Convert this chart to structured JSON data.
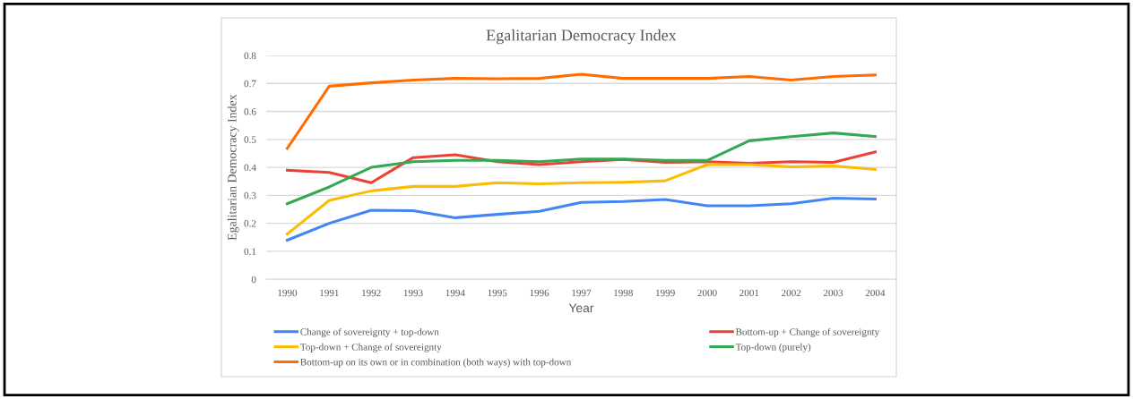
{
  "chart_data": {
    "type": "line",
    "title": "Egalitarian Democracy Index",
    "xlabel": "Year",
    "ylabel": "Egalitarian Democracy Index",
    "categories": [
      "1990",
      "1991",
      "1992",
      "1993",
      "1994",
      "1995",
      "1996",
      "1997",
      "1998",
      "1999",
      "2000",
      "2001",
      "2002",
      "2003",
      "2004"
    ],
    "ylim": [
      0,
      0.8
    ],
    "yticks": [
      0,
      0.1,
      0.2,
      0.3,
      0.4,
      0.5,
      0.6,
      0.7,
      0.8
    ],
    "grid": "y",
    "legend": "bottom",
    "marker": "none",
    "line_style": "solid",
    "series": [
      {
        "name": "Change of sovereignty + top-down",
        "color": "#4285f4",
        "values": [
          0.14,
          0.2,
          0.247,
          0.245,
          0.22,
          0.232,
          0.243,
          0.275,
          0.278,
          0.285,
          0.263,
          0.263,
          0.27,
          0.29,
          0.287
        ]
      },
      {
        "name": "Bottom-up + Change of sovereignty",
        "color": "#ea4335",
        "values": [
          0.39,
          0.382,
          0.345,
          0.435,
          0.445,
          0.42,
          0.41,
          0.42,
          0.428,
          0.418,
          0.42,
          0.415,
          0.42,
          0.418,
          0.455
        ]
      },
      {
        "name": "Top-down + Change of sovereignty",
        "color": "#fbbc04",
        "values": [
          0.162,
          0.282,
          0.316,
          0.332,
          0.332,
          0.345,
          0.341,
          0.345,
          0.347,
          0.352,
          0.41,
          0.41,
          0.402,
          0.405,
          0.393
        ]
      },
      {
        "name": "Top-down (purely)",
        "color": "#34a853",
        "values": [
          0.27,
          0.33,
          0.4,
          0.42,
          0.425,
          0.425,
          0.42,
          0.43,
          0.43,
          0.425,
          0.425,
          0.495,
          0.51,
          0.523,
          0.51
        ]
      },
      {
        "name": "Bottom-up on its own or in combination (both ways) with top-down",
        "color": "#ff6d01",
        "values": [
          0.468,
          0.69,
          0.702,
          0.712,
          0.718,
          0.717,
          0.718,
          0.733,
          0.718,
          0.718,
          0.718,
          0.725,
          0.712,
          0.725,
          0.73
        ]
      }
    ]
  }
}
